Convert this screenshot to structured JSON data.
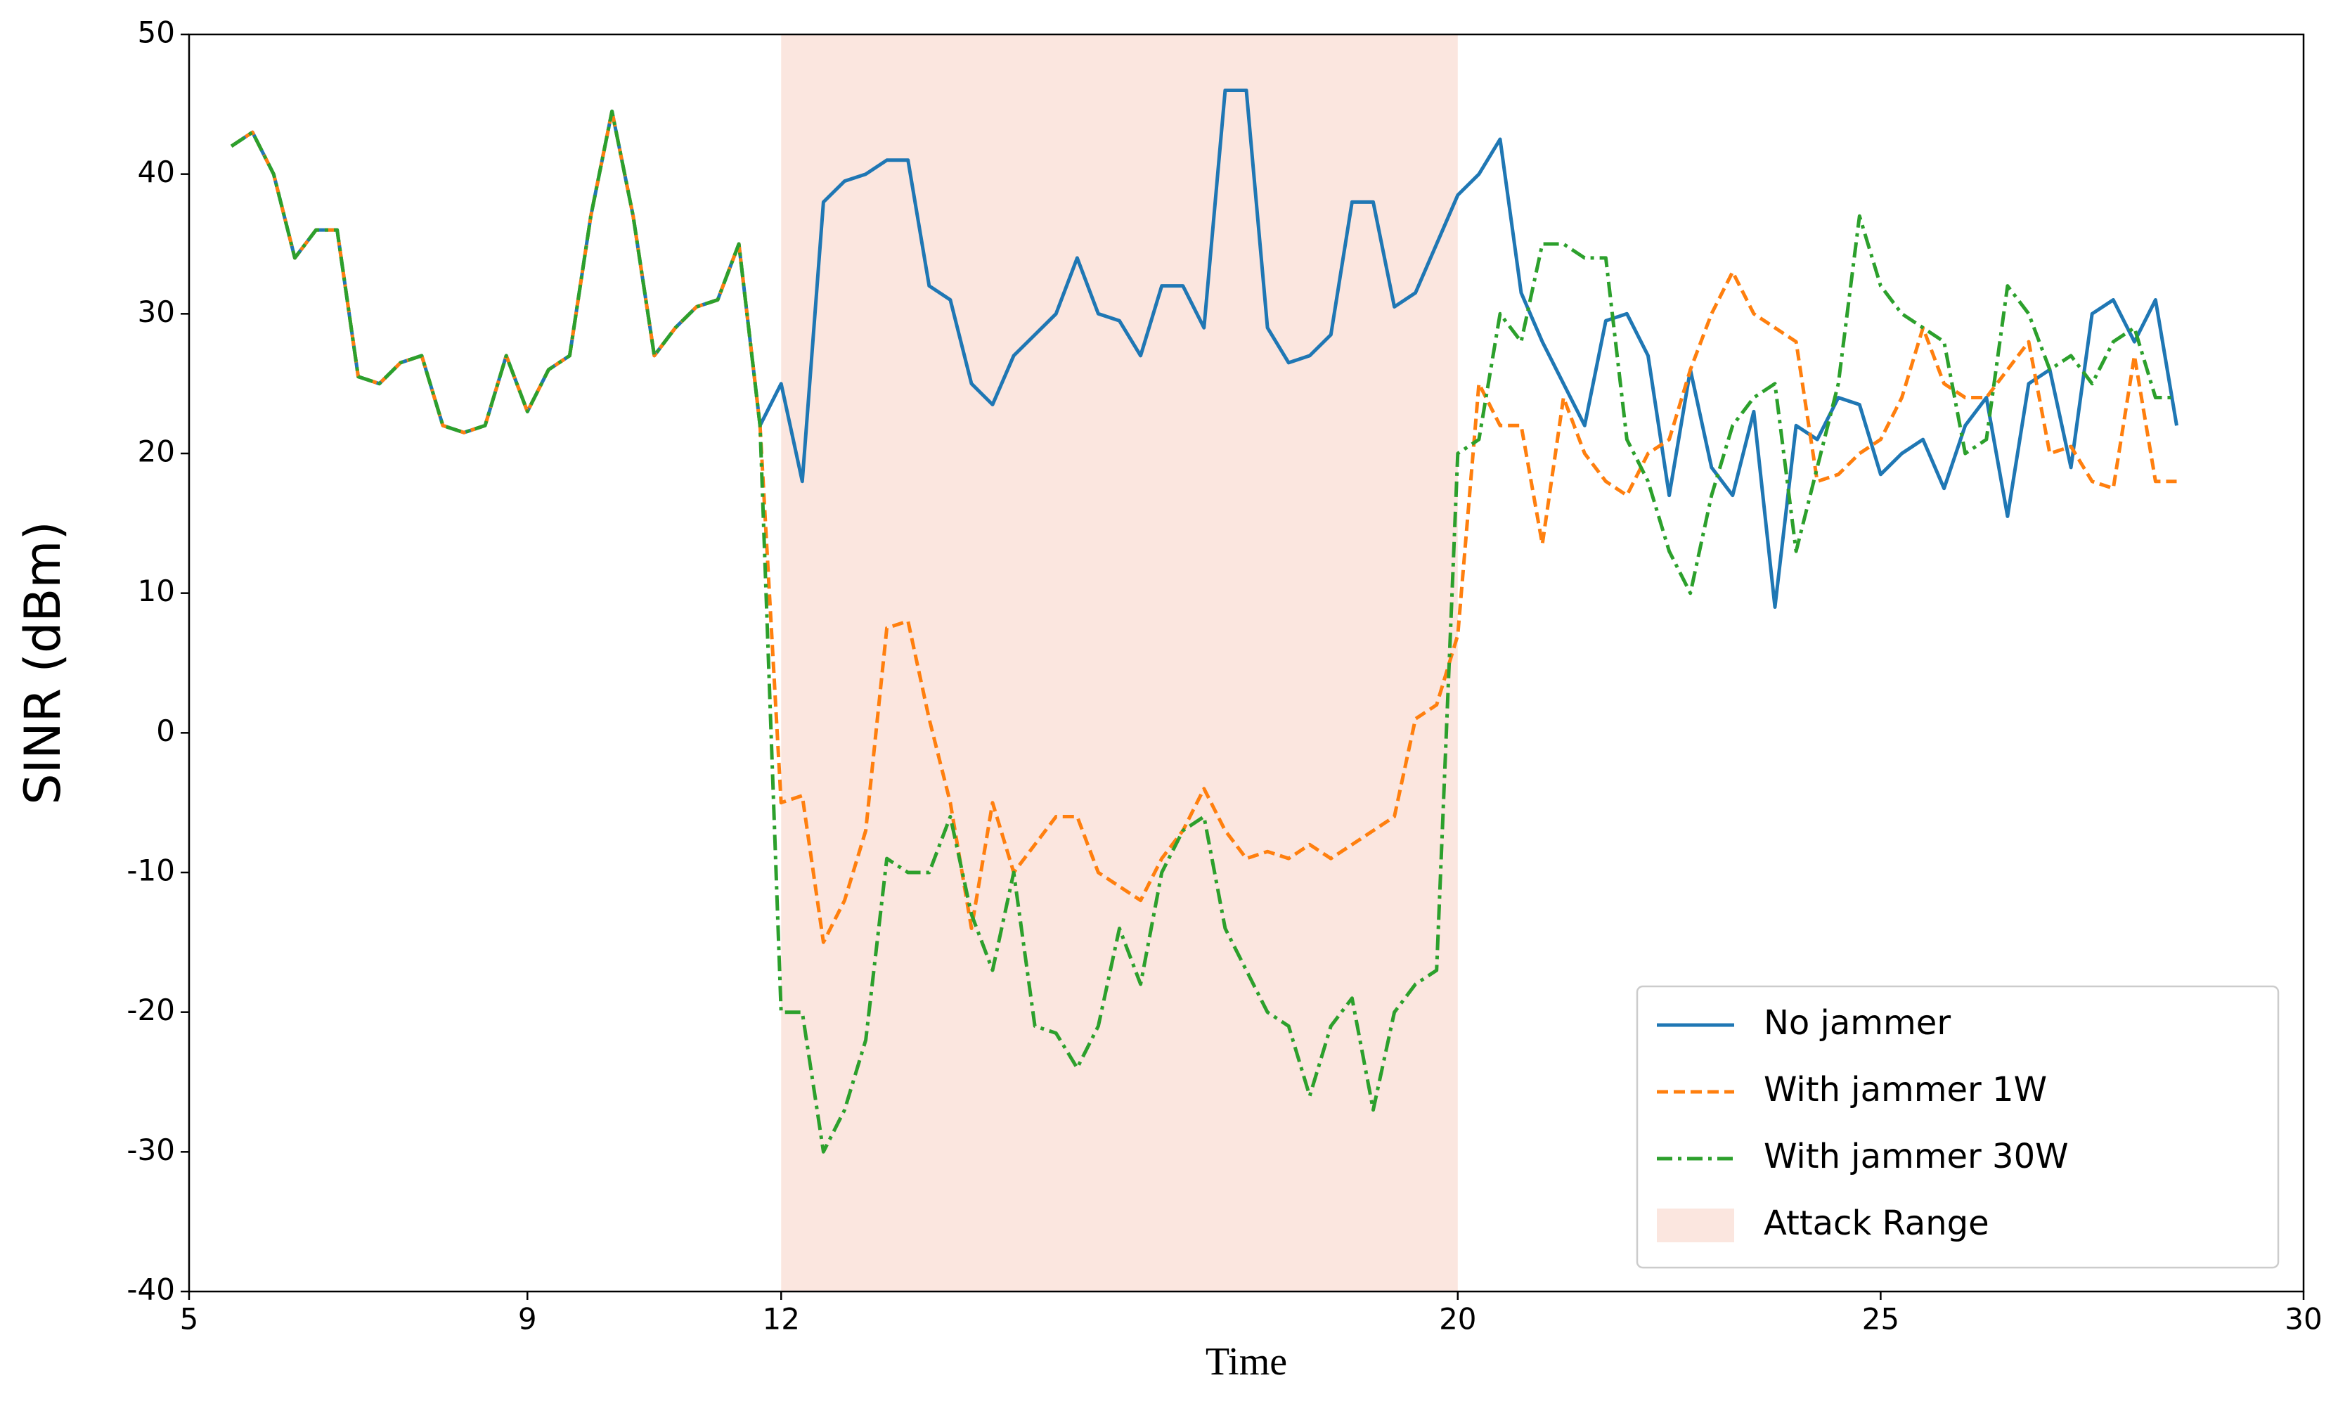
{
  "chart_data": {
    "type": "line",
    "xlabel": "Time",
    "ylabel": "SINR (dBm)",
    "xlim": [
      5,
      30
    ],
    "xticks": [
      5,
      9,
      12,
      20,
      25,
      30
    ],
    "ylim": [
      -40,
      50
    ],
    "yticks": [
      -40,
      -30,
      -20,
      -10,
      0,
      10,
      20,
      30,
      40,
      50
    ],
    "legend": "lower right",
    "attack_range": {
      "name": "Attack Range",
      "x": [
        12,
        20
      ],
      "color": "#fbe6df"
    },
    "x": [
      5.5,
      5.75,
      6,
      6.25,
      6.5,
      6.75,
      7,
      7.25,
      7.5,
      7.75,
      8,
      8.25,
      8.5,
      8.75,
      9,
      9.25,
      9.5,
      9.75,
      10,
      10.25,
      10.5,
      10.75,
      11,
      11.25,
      11.5,
      11.75,
      12,
      12.25,
      12.5,
      12.75,
      13,
      13.25,
      13.5,
      13.75,
      14,
      14.25,
      14.5,
      14.75,
      15,
      15.25,
      15.5,
      15.75,
      16,
      16.25,
      16.5,
      16.75,
      17,
      17.25,
      17.5,
      17.75,
      18,
      18.25,
      18.5,
      18.75,
      19,
      19.25,
      19.5,
      19.75,
      20,
      20.25,
      20.5,
      20.75,
      21,
      21.25,
      21.5,
      21.75,
      22,
      22.25,
      22.5,
      22.75,
      23,
      23.25,
      23.5,
      23.75,
      24,
      24.25,
      24.5,
      24.75,
      25,
      25.25,
      25.5,
      25.75,
      26,
      26.25,
      26.5,
      26.75,
      27,
      27.25,
      27.5,
      27.75,
      28,
      28.25,
      28.5
    ],
    "series": [
      {
        "name": "No jammer",
        "color": "#1f77b4",
        "style": "solid",
        "values": [
          42,
          43,
          40,
          34,
          36,
          36,
          25.5,
          25,
          26.5,
          27,
          22,
          21.5,
          22,
          27,
          23,
          26,
          27,
          37,
          44.5,
          37,
          27,
          29,
          30.5,
          31,
          35,
          22,
          25,
          18,
          38,
          39.5,
          40,
          41,
          41,
          32,
          31,
          25,
          23.5,
          27,
          28.5,
          30,
          34,
          30,
          29.5,
          27,
          32,
          32,
          29,
          46,
          46,
          29,
          26.5,
          27,
          28.5,
          38,
          38,
          30.5,
          31.5,
          35,
          38.5,
          40,
          42.5,
          31.5,
          28,
          25,
          22,
          29.5,
          30,
          27,
          17,
          26,
          19,
          17,
          23,
          9,
          22,
          21,
          24,
          23.5,
          18.5,
          20,
          21,
          17.5,
          22,
          24,
          15.5,
          25,
          26,
          19,
          30,
          31,
          28,
          31,
          22
        ]
      },
      {
        "name": "With jammer 1W",
        "color": "#ff7f0e",
        "style": "dashed",
        "values": [
          42,
          43,
          40,
          34,
          36,
          36,
          25.5,
          25,
          26.5,
          27,
          22,
          21.5,
          22,
          27,
          23,
          26,
          27,
          37,
          44.5,
          37,
          27,
          29,
          30.5,
          31,
          35,
          22,
          -5,
          -4.5,
          -15,
          -12,
          -7,
          7.5,
          8,
          1,
          -5,
          -14,
          -5,
          -10,
          -8,
          -6,
          -6,
          -10,
          -11,
          -12,
          -9,
          -7,
          -4,
          -7,
          -9,
          -8.5,
          -9,
          -8,
          -9,
          -8,
          -7,
          -6,
          1,
          2,
          7,
          25,
          22,
          22,
          13.5,
          24,
          20,
          18,
          17,
          20,
          21,
          26,
          30,
          33,
          30,
          29,
          28,
          18,
          18.5,
          20,
          21,
          24,
          29,
          25,
          24,
          24,
          26,
          28,
          20,
          20.5,
          18,
          17.5,
          27,
          18,
          18
        ]
      },
      {
        "name": "With jammer 30W",
        "color": "#2ca02c",
        "style": "dashdot",
        "values": [
          42,
          43,
          40,
          34,
          36,
          36,
          25.5,
          25,
          26.5,
          27,
          22,
          21.5,
          22,
          27,
          23,
          26,
          27,
          37,
          44.5,
          37,
          27,
          29,
          30.5,
          31,
          35,
          22,
          -20,
          -20,
          -30,
          -27,
          -22,
          -9,
          -10,
          -10,
          -6,
          -13,
          -17,
          -10,
          -21,
          -21.5,
          -24,
          -21,
          -14,
          -18,
          -10,
          -7,
          -6,
          -14,
          -17,
          -20,
          -21,
          -26,
          -21,
          -19,
          -27,
          -20,
          -18,
          -17,
          20,
          21,
          30,
          28,
          35,
          35,
          34,
          34,
          21,
          18,
          13,
          10,
          17,
          22,
          24,
          25,
          13,
          19,
          25,
          37,
          32,
          30,
          29,
          28,
          20,
          21,
          32,
          30,
          26,
          27,
          25,
          28,
          29,
          24,
          24
        ]
      }
    ]
  }
}
